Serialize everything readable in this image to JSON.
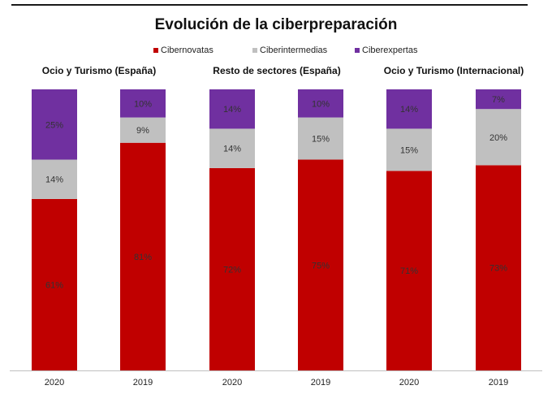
{
  "chart_data": {
    "type": "bar",
    "stacked": true,
    "title": "Evolución de la ciberpreparación",
    "legend_position": "top",
    "legend": [
      "Cibernovatas",
      "Ciberintermedias",
      "Ciberexpertas"
    ],
    "colors": {
      "Cibernovatas": "#c00000",
      "Ciberintermedias": "#c0c0c0",
      "Ciberexpertas": "#7030a0"
    },
    "groups": [
      {
        "title": "Ocio y  Turismo (España)",
        "categories": [
          "2020",
          "2019"
        ]
      },
      {
        "title": "Resto de sectores (España)",
        "categories": [
          "2020",
          "2019"
        ]
      },
      {
        "title": "Ocio y  Turismo (Internacional)",
        "categories": [
          "2020",
          "2019"
        ]
      }
    ],
    "categories": [
      "2020",
      "2019",
      "2020",
      "2019",
      "2020",
      "2019"
    ],
    "series": [
      {
        "name": "Cibernovatas",
        "values": [
          61,
          81,
          72,
          75,
          71,
          73
        ],
        "labels": [
          "61%",
          "81%",
          "72%",
          "75%",
          "71%",
          "73%"
        ]
      },
      {
        "name": "Ciberintermedias",
        "values": [
          14,
          9,
          14,
          15,
          15,
          20
        ],
        "labels": [
          "14%",
          "9%",
          "14%",
          "15%",
          "15%",
          "20%"
        ]
      },
      {
        "name": "Ciberexpertas",
        "values": [
          25,
          10,
          14,
          10,
          14,
          7
        ],
        "labels": [
          "25%",
          "10%",
          "14%",
          "10%",
          "14%",
          "7%"
        ]
      }
    ],
    "ylim": [
      0,
      100
    ],
    "grid": false,
    "xlabel": "",
    "ylabel": ""
  }
}
